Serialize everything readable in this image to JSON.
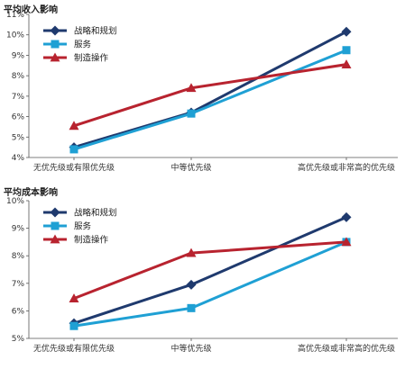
{
  "chart_data": [
    {
      "type": "line",
      "title": "平均收入影响",
      "categories": [
        "无优先级或有限优先级",
        "中等优先级",
        "高优先级或非常高的优先级"
      ],
      "y_ticks": [
        "4%",
        "5%",
        "6%",
        "7%",
        "8%",
        "9%",
        "10%",
        "11%"
      ],
      "ylim": [
        4,
        11
      ],
      "grid": false,
      "legend_position": "top-left",
      "series": [
        {
          "name": "战略和规划",
          "values": [
            4.5,
            6.2,
            10.15
          ],
          "color": "#1f3a6e",
          "marker": "diamond"
        },
        {
          "name": "服务",
          "values": [
            4.4,
            6.15,
            9.25
          ],
          "color": "#1fa0d4",
          "marker": "square"
        },
        {
          "name": "制造操作",
          "values": [
            5.55,
            7.4,
            8.55
          ],
          "color": "#b8232f",
          "marker": "triangle"
        }
      ]
    },
    {
      "type": "line",
      "title": "平均成本影响",
      "categories": [
        "无优先级或有限优先级",
        "中等优先级",
        "高优先级或非常高的优先级"
      ],
      "y_ticks": [
        "5%",
        "6%",
        "7%",
        "8%",
        "9%",
        "10%"
      ],
      "ylim": [
        5,
        10
      ],
      "grid": false,
      "legend_position": "top-left",
      "series": [
        {
          "name": "战略和规划",
          "values": [
            5.55,
            6.95,
            9.4
          ],
          "color": "#1f3a6e",
          "marker": "diamond"
        },
        {
          "name": "服务",
          "values": [
            5.45,
            6.1,
            8.5
          ],
          "color": "#1fa0d4",
          "marker": "square"
        },
        {
          "name": "制造操作",
          "values": [
            6.45,
            8.1,
            8.5
          ],
          "color": "#b8232f",
          "marker": "triangle"
        }
      ]
    }
  ]
}
